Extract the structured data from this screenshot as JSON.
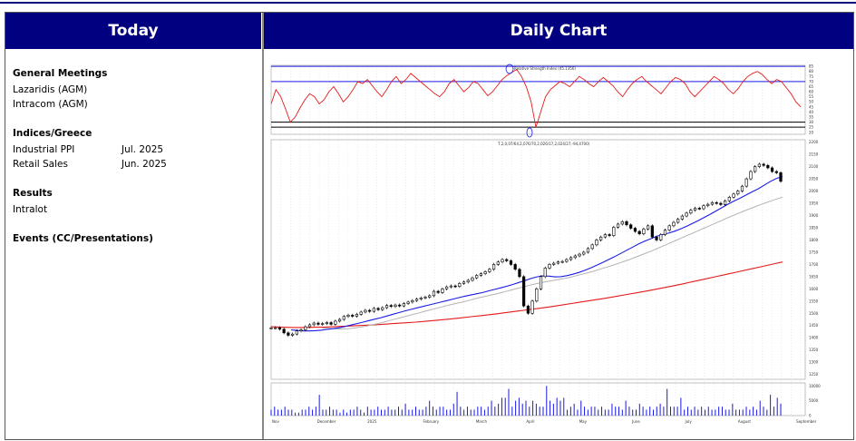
{
  "header": {
    "left_title": "Today",
    "right_title": "Daily Chart"
  },
  "today": {
    "general_meetings": {
      "title": "General Meetings",
      "items": [
        "Lazaridis (AGM)",
        "Intracom (AGM)"
      ]
    },
    "indices": {
      "title": "Indices/Greece",
      "items": [
        {
          "name": "Industrial PPI",
          "period": "Jul. 2025"
        },
        {
          "name": "Retail Sales",
          "period": "Jun. 2025"
        }
      ]
    },
    "results": {
      "title": "Results",
      "items": [
        "Intralot"
      ]
    },
    "events": {
      "title": "Events (CC/Presentations)"
    }
  },
  "chart": {
    "rsi_label": "Relative Strength Index (45.1356)",
    "ohlc_label": "T,2,0,07/64,2,076/70,2,026/17,2,024/27,-94,4700)",
    "colors": {
      "price": "#000000",
      "ma_short": "#1a1ae6",
      "ma_mid": "#b3b3b3",
      "ma_long": "#e61a1a",
      "rsi": "#e61a1a",
      "volume": "#1a1ae6",
      "rsi_bands": "#1a1ae6"
    }
  },
  "chart_data": {
    "type": "candlestick",
    "price_axis_ticks": [
      "2200",
      "2150",
      "2100",
      "2050",
      "2000",
      "1950",
      "1900",
      "1850",
      "1800",
      "1750",
      "1700",
      "1650",
      "1600",
      "1550",
      "1500",
      "1450",
      "1400",
      "1350",
      "1300",
      "1250"
    ],
    "price_range": [
      1230,
      2210
    ],
    "rsi_axis_ticks": [
      "85",
      "80",
      "75",
      "70",
      "65",
      "60",
      "55",
      "50",
      "45",
      "40",
      "35",
      "30",
      "25",
      "20"
    ],
    "rsi_range": [
      18,
      86
    ],
    "rsi_levels": [
      85,
      70,
      30,
      25
    ],
    "volume_axis_ticks": [
      "10000",
      "5000",
      "0"
    ],
    "volume_range": [
      0,
      11000
    ],
    "months": [
      "Nov",
      "December",
      "2025",
      "February",
      "March",
      "April",
      "May",
      "June",
      "July",
      "August",
      "September"
    ],
    "month_positions": [
      0,
      0.085,
      0.18,
      0.285,
      0.385,
      0.48,
      0.58,
      0.68,
      0.78,
      0.88,
      0.99
    ],
    "close_series": [
      1440,
      1441,
      1435,
      1420,
      1410,
      1415,
      1428,
      1432,
      1445,
      1453,
      1460,
      1455,
      1458,
      1462,
      1455,
      1468,
      1475,
      1487,
      1492,
      1488,
      1496,
      1505,
      1512,
      1508,
      1520,
      1515,
      1523,
      1532,
      1528,
      1534,
      1530,
      1540,
      1546,
      1552,
      1558,
      1563,
      1566,
      1572,
      1590,
      1585,
      1600,
      1608,
      1612,
      1610,
      1622,
      1628,
      1635,
      1645,
      1655,
      1662,
      1670,
      1680,
      1700,
      1710,
      1720,
      1715,
      1700,
      1680,
      1650,
      1530,
      1500,
      1550,
      1600,
      1650,
      1685,
      1700,
      1705,
      1710,
      1712,
      1720,
      1728,
      1735,
      1742,
      1750,
      1765,
      1780,
      1800,
      1812,
      1822,
      1818,
      1852,
      1865,
      1875,
      1862,
      1848,
      1835,
      1825,
      1845,
      1858,
      1812,
      1800,
      1822,
      1840,
      1858,
      1872,
      1885,
      1898,
      1910,
      1922,
      1930,
      1928,
      1940,
      1946,
      1953,
      1950,
      1945,
      1960,
      1975,
      1988,
      2000,
      2020,
      2050,
      2080,
      2100,
      2110,
      2105,
      2095,
      2080,
      2075,
      2040
    ],
    "ma_short_series": [
      1432,
      1430,
      1428,
      1428,
      1429,
      1431,
      1434,
      1437,
      1441,
      1446,
      1452,
      1458,
      1464,
      1470,
      1476,
      1482,
      1489,
      1496,
      1503,
      1510,
      1516,
      1522,
      1528,
      1534,
      1540,
      1546,
      1552,
      1558,
      1564,
      1570,
      1575,
      1580,
      1585,
      1592,
      1598,
      1604,
      1611,
      1618,
      1626,
      1634,
      1642,
      1649,
      1653,
      1652,
      1649,
      1650,
      1654,
      1660,
      1667,
      1676,
      1686,
      1697,
      1708,
      1720,
      1732,
      1745,
      1758,
      1771,
      1784,
      1795,
      1805,
      1815,
      1822,
      1828,
      1836,
      1845,
      1856,
      1868,
      1880,
      1893,
      1906,
      1920,
      1934,
      1948,
      1960,
      1972,
      1985,
      1998,
      2010,
      2025,
      2040,
      2052,
      2060
    ],
    "ma_mid_series": [
      1440,
      1439,
      1437,
      1436,
      1436,
      1438,
      1441,
      1444,
      1448,
      1453,
      1458,
      1464,
      1470,
      1476,
      1482,
      1488,
      1494,
      1500,
      1506,
      1512,
      1518,
      1524,
      1530,
      1536,
      1541,
      1546,
      1552,
      1558,
      1564,
      1569,
      1574,
      1579,
      1585,
      1591,
      1597,
      1603,
      1609,
      1615,
      1620,
      1625,
      1630,
      1634,
      1638,
      1642,
      1646,
      1652,
      1658,
      1664,
      1670,
      1677,
      1684,
      1691,
      1698,
      1706,
      1714,
      1722,
      1731,
      1740,
      1749,
      1758,
      1768,
      1778,
      1788,
      1798,
      1808,
      1818,
      1828,
      1838,
      1848,
      1858,
      1868,
      1878,
      1888,
      1898,
      1908,
      1917,
      1926,
      1935,
      1944,
      1952,
      1960,
      1968,
      1975
    ],
    "ma_long_series": [
      1445,
      1443,
      1442,
      1442,
      1443,
      1444,
      1446,
      1448,
      1450,
      1452,
      1455,
      1458,
      1461,
      1464,
      1468,
      1472,
      1476,
      1481,
      1486,
      1491,
      1496,
      1502,
      1508,
      1514,
      1520,
      1526,
      1533,
      1540,
      1547,
      1554,
      1561,
      1569,
      1577,
      1585,
      1593,
      1602,
      1611,
      1620,
      1630,
      1640,
      1650,
      1660,
      1670,
      1680,
      1690,
      1700,
      1710
    ],
    "rsi_series": [
      48,
      62,
      55,
      43,
      30,
      35,
      44,
      52,
      58,
      55,
      48,
      52,
      60,
      65,
      58,
      50,
      55,
      62,
      70,
      68,
      72,
      66,
      60,
      55,
      62,
      70,
      75,
      68,
      72,
      78,
      74,
      70,
      66,
      62,
      58,
      55,
      60,
      68,
      72,
      66,
      60,
      64,
      70,
      68,
      62,
      56,
      60,
      66,
      72,
      76,
      79,
      82,
      75,
      65,
      50,
      25,
      40,
      55,
      62,
      66,
      70,
      68,
      65,
      70,
      75,
      72,
      68,
      65,
      70,
      74,
      70,
      66,
      60,
      55,
      62,
      68,
      72,
      75,
      70,
      66,
      62,
      58,
      64,
      70,
      74,
      72,
      68,
      60,
      55,
      60,
      65,
      70,
      75,
      72,
      68,
      62,
      58,
      63,
      70,
      75,
      78,
      80,
      77,
      72,
      68,
      72,
      70,
      64,
      58,
      50,
      45
    ],
    "volume_series": [
      2,
      3,
      2,
      2,
      3,
      2,
      2,
      1,
      1,
      2,
      2,
      3,
      2,
      3,
      7,
      2,
      2,
      3,
      2,
      2,
      1,
      2,
      1,
      2,
      2,
      3,
      2,
      1,
      3,
      2,
      2,
      3,
      2,
      2,
      3,
      2,
      2,
      3,
      2,
      4,
      2,
      2,
      3,
      2,
      2,
      3,
      5,
      3,
      2,
      3,
      3,
      2,
      2,
      4,
      8,
      3,
      2,
      3,
      2,
      2,
      3,
      3,
      2,
      3,
      5,
      3,
      4,
      6,
      6,
      9,
      3,
      5,
      6,
      4,
      5,
      3,
      5,
      4,
      3,
      3,
      10,
      5,
      4,
      6,
      5,
      6,
      2,
      3,
      4,
      2,
      5,
      3,
      2,
      3,
      3,
      2,
      3,
      2,
      2,
      4,
      3,
      3,
      2,
      5,
      3,
      2,
      2,
      4,
      3,
      2,
      3,
      2,
      3,
      4,
      3,
      9,
      3,
      3,
      3,
      6,
      2,
      3,
      2,
      3,
      2,
      3,
      2,
      3,
      2,
      2,
      3,
      3,
      2,
      2,
      4,
      2,
      2,
      2,
      3,
      2,
      3,
      2,
      5,
      3,
      2,
      7,
      3,
      6,
      4
    ]
  }
}
